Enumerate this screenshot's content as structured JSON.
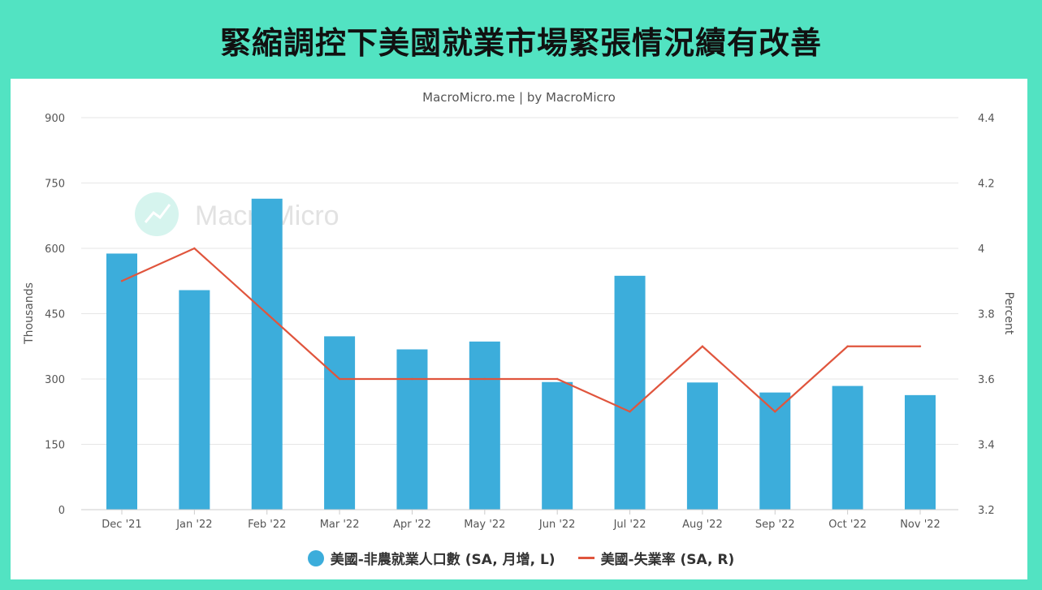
{
  "title": "緊縮調控下美國就業市場緊張情況續有改善",
  "source": "MacroMicro.me | by MacroMicro",
  "watermark": "MacroMicro",
  "colors": {
    "bars": "#3caddb",
    "line": "#e0553d",
    "background": "#52e3c2"
  },
  "chart_data": {
    "type": "bar",
    "categories": [
      "Dec '21",
      "Jan '22",
      "Feb '22",
      "Mar '22",
      "Apr '22",
      "May '22",
      "Jun '22",
      "Jul '22",
      "Aug '22",
      "Sep '22",
      "Oct '22",
      "Nov '22"
    ],
    "series": [
      {
        "name": "美國-非農就業人口數 (SA, 月增, L)",
        "type": "bar",
        "axis": "left",
        "values": [
          588,
          504,
          714,
          398,
          368,
          386,
          293,
          537,
          292,
          269,
          284,
          263
        ]
      },
      {
        "name": "美國-失業率 (SA, R)",
        "type": "line",
        "axis": "right",
        "values": [
          3.9,
          4.0,
          3.8,
          3.6,
          3.6,
          3.6,
          3.6,
          3.5,
          3.7,
          3.5,
          3.7,
          3.7
        ]
      }
    ],
    "ylabel": "Thousands",
    "y2label": "Percent",
    "ylim": [
      0,
      900
    ],
    "y2lim": [
      3.2,
      4.4
    ],
    "yticks": [
      "0",
      "150",
      "300",
      "450",
      "600",
      "750",
      "900"
    ],
    "y2ticks": [
      "3.2",
      "3.4",
      "3.6",
      "3.8",
      "4",
      "4.2",
      "4.4"
    ],
    "grid": true,
    "legend": "bottom"
  }
}
